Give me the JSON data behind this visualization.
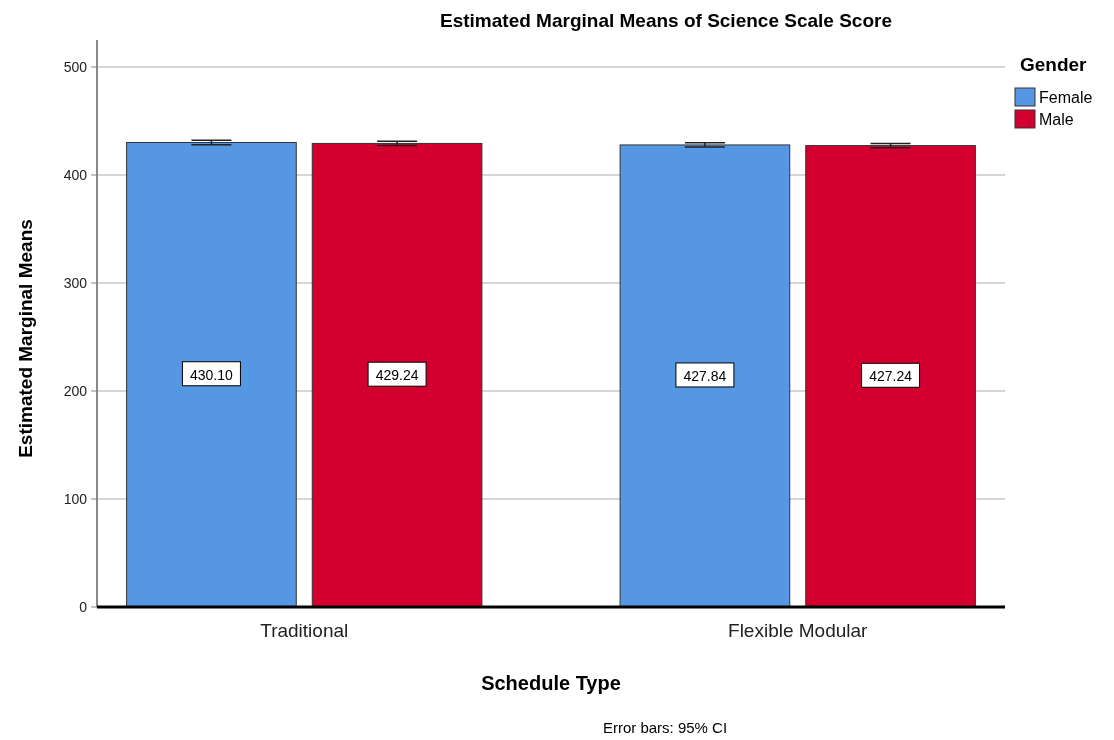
{
  "chart_data": {
    "type": "bar",
    "title": "Estimated Marginal Means of Science Scale Score",
    "xlabel": "Schedule Type",
    "ylabel": "Estimated Marginal Means",
    "legend_title": "Gender",
    "categories": [
      "Traditional",
      "Flexible Modular"
    ],
    "series": [
      {
        "name": "Female",
        "color": "#5597e3",
        "values": [
          430.1,
          427.84
        ],
        "errors": [
          2,
          2
        ],
        "value_labels": [
          "430.10",
          "427.84"
        ]
      },
      {
        "name": "Male",
        "color": "#d3002f",
        "values": [
          429.24,
          427.24
        ],
        "errors": [
          2,
          2
        ],
        "value_labels": [
          "429.24",
          "427.24"
        ]
      }
    ],
    "ylim": [
      0,
      525
    ],
    "yticks": [
      0,
      100,
      200,
      300,
      400,
      500
    ],
    "grid": "y",
    "legend": "top right",
    "annotations": [
      "Error bars: 95% CI"
    ]
  }
}
